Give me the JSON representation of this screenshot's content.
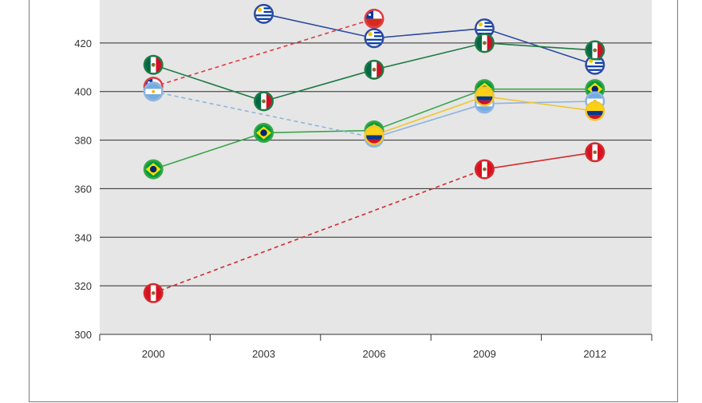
{
  "chart_data": {
    "type": "line",
    "title": "",
    "xlabel": "",
    "ylabel": "",
    "ylim": [
      300,
      440
    ],
    "yticks": [
      300,
      320,
      340,
      360,
      380,
      400,
      420
    ],
    "categories": [
      "2000",
      "2003",
      "2006",
      "2009",
      "2012"
    ],
    "grid": true,
    "background_color": "#e6e6e6",
    "series": [
      {
        "country": "Chile",
        "flag": "chile-flag",
        "color": "#e3393f",
        "dashed_segments": [
          0
        ],
        "values": [
          402,
          null,
          430,
          null,
          null
        ]
      },
      {
        "country": "Uruguay",
        "flag": "uruguay-flag",
        "color": "#2c4aa0",
        "dashed_segments": [],
        "values": [
          null,
          432,
          422,
          426,
          411
        ]
      },
      {
        "country": "Mexico",
        "flag": "mexico-flag",
        "color": "#1f7a45",
        "dashed_segments": [],
        "values": [
          411,
          396,
          409,
          420,
          417
        ]
      },
      {
        "country": "Brazil",
        "flag": "brazil-flag",
        "color": "#3aa64a",
        "dashed_segments": [],
        "values": [
          368,
          383,
          384,
          401,
          401
        ]
      },
      {
        "country": "Argentina",
        "flag": "argentina-flag",
        "color": "#8fb4e0",
        "dashed_segments": [
          0
        ],
        "values": [
          400,
          null,
          381,
          395,
          396
        ]
      },
      {
        "country": "Colombia",
        "flag": "colombia-flag",
        "color": "#f2c62e",
        "dashed_segments": [],
        "values": [
          null,
          null,
          382,
          398,
          392
        ]
      },
      {
        "country": "Peru",
        "flag": "peru-flag",
        "color": "#d22b2b",
        "dashed_segments": [
          0
        ],
        "values": [
          317,
          null,
          null,
          368,
          375
        ]
      }
    ]
  }
}
